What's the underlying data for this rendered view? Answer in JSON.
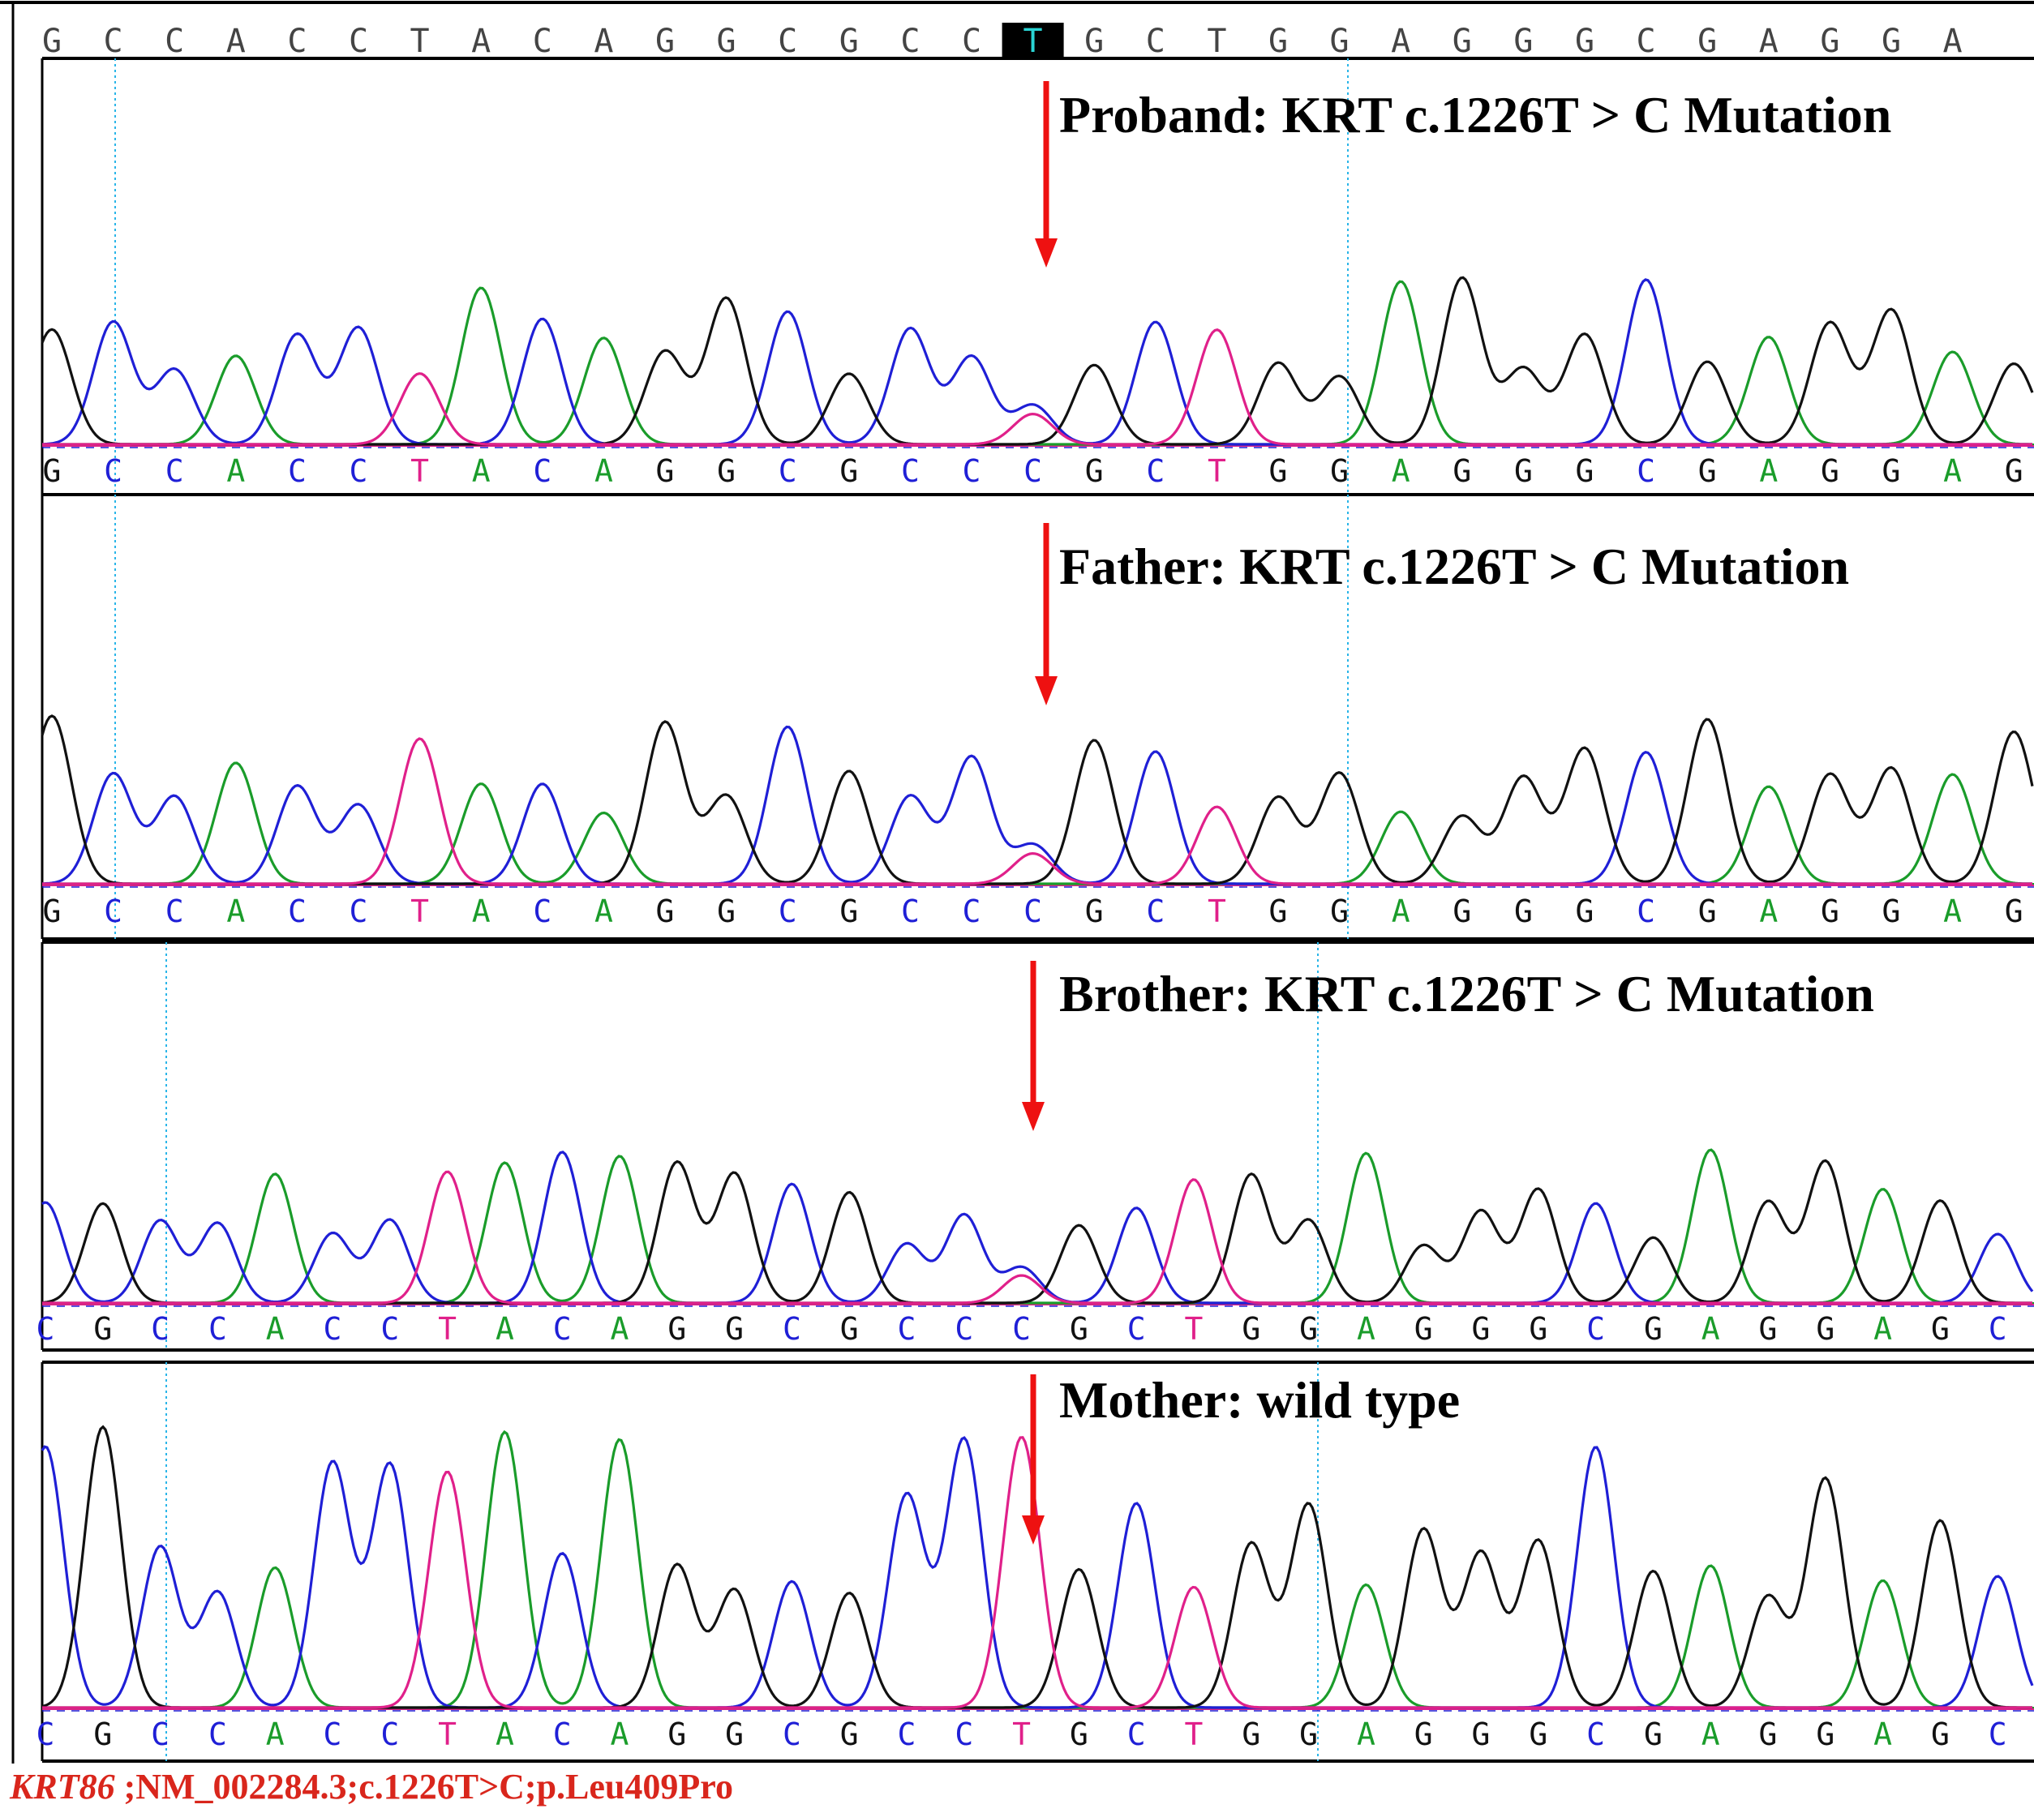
{
  "reference_sequence": "GCCACCTACAGGCGCCTGCTGGAGGGCGAGGA",
  "highlighted_base_index": 16,
  "base_colors": {
    "A": "#1a9c2a",
    "C": "#1f1fd6",
    "G": "#111111",
    "T": "#e0208a"
  },
  "arrow_color": "#ee1111",
  "panels": [
    {
      "title": "Proband: KRT c.1226T > C Mutation",
      "bases": "GCCACCTACAGGCGCCCGCTGGAGGGCGAGGAG",
      "genotype": "heterozygous"
    },
    {
      "title": "Father: KRT c.1226T > C Mutation",
      "bases": "GCCACCTACAGGCGCCCGCTGGAGGGCGAGGAG",
      "genotype": "heterozygous"
    },
    {
      "title": "Brother: KRT c.1226T > C Mutation",
      "bases": "CGCCACCTACAGGCGCCCGCTGGAGGGCGAGGAGC",
      "genotype": "heterozygous"
    },
    {
      "title": "Mother: wild type",
      "bases": "CGCCACCTACAGGCGCCTGCTGGAGGGCGAGGAGC",
      "genotype": "wild type"
    }
  ],
  "footer": {
    "gene": "KRT86",
    "detail": " ;NM_002284.3;c.1226T>C;p.Leu409Pro"
  }
}
